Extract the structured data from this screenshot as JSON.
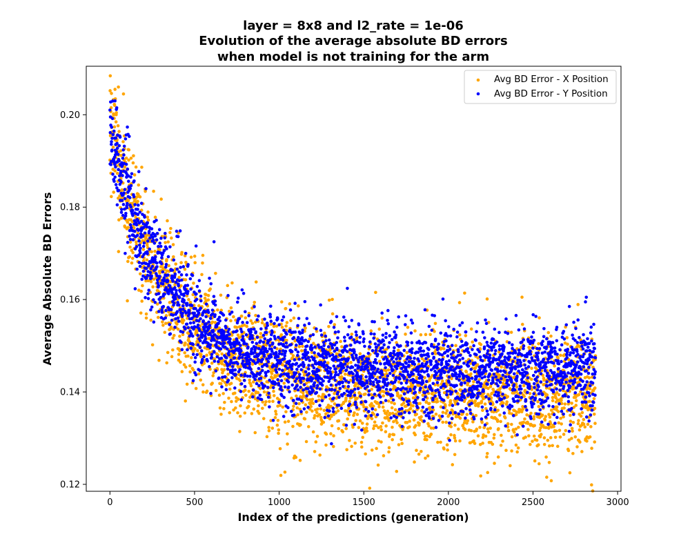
{
  "chart_data": {
    "type": "scatter",
    "title_lines": [
      "layer = 8x8 and l2_rate = 1e-06",
      "Evolution of the average absolute BD errors",
      "when model is not training for the arm"
    ],
    "xlabel": "Index of the predictions (generation)",
    "ylabel": "Average Absolute BD Errors",
    "xlim": [
      -140,
      3020
    ],
    "ylim": [
      0.1185,
      0.2105
    ],
    "xticks": [
      0,
      500,
      1000,
      1500,
      2000,
      2500,
      3000
    ],
    "yticks": [
      0.12,
      0.14,
      0.16,
      0.18,
      0.2
    ],
    "ytick_labels": [
      "0.12",
      "0.14",
      "0.16",
      "0.18",
      "0.20"
    ],
    "grid": false,
    "legend_position": "top-right",
    "n_points_per_series": 2870,
    "series": [
      {
        "name": "Avg BD Error - X Position",
        "color": "#ffa500",
        "trend": {
          "base": 0.1395,
          "amp": 0.056,
          "tau": 380,
          "slope": 0.0
        },
        "noise_sd": 0.0062,
        "outliers": [
          [
            30,
            0.2055
          ],
          [
            50,
            0.206
          ],
          [
            80,
            0.2045
          ],
          [
            2718,
            0.1225
          ],
          [
            2400,
            0.1285
          ],
          [
            2130,
            0.129
          ],
          [
            215,
            0.156
          ]
        ]
      },
      {
        "name": "Avg BD Error - Y Position",
        "color": "#0000ff",
        "trend": {
          "base": 0.1445,
          "amp": 0.051,
          "tau": 330,
          "slope": 0.0
        },
        "noise_sd": 0.005,
        "outliers": [
          [
            30,
            0.203
          ],
          [
            40,
            0.2015
          ],
          [
            615,
            0.1725
          ],
          [
            2815,
            0.1605
          ],
          [
            2810,
            0.1595
          ],
          [
            2715,
            0.1585
          ],
          [
            2590,
            0.133
          ]
        ]
      }
    ]
  }
}
